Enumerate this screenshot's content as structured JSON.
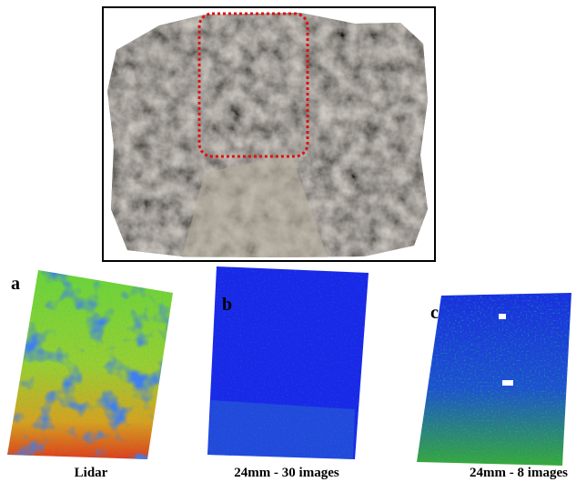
{
  "figure": {
    "panels": [
      {
        "letter": "a",
        "caption": "Lidar"
      },
      {
        "letter": "b",
        "caption": "24mm - 30 images"
      },
      {
        "letter": "c",
        "caption": "24mm - 8 images"
      }
    ]
  }
}
